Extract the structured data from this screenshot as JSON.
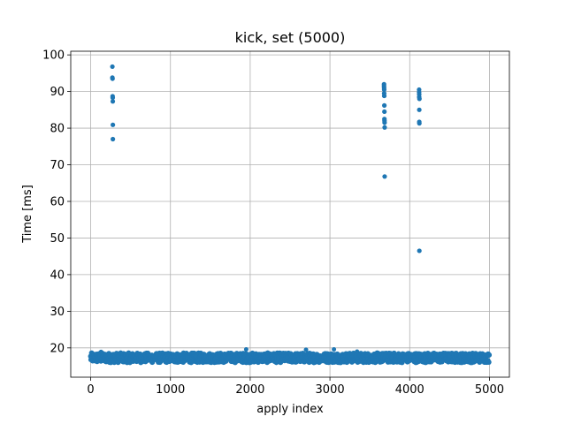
{
  "chart_data": {
    "type": "scatter",
    "title": "kick, set (5000)",
    "xlabel": "apply index",
    "ylabel": "Time [ms]",
    "xlim": [
      -250,
      5250
    ],
    "ylim": [
      12,
      101
    ],
    "xticks": [
      0,
      1000,
      2000,
      3000,
      4000,
      5000
    ],
    "yticks": [
      20,
      30,
      40,
      50,
      60,
      70,
      80,
      90,
      100
    ],
    "grid": true,
    "marker_color": "#1f77b4",
    "baseline_band": {
      "x_range": [
        0,
        5000
      ],
      "y_range": [
        16.0,
        18.6
      ],
      "count": 5000,
      "note_values": "dense cloud of points between about 16 and 19.5 ms"
    },
    "baseline_spikes": [
      {
        "x": 130,
        "y": 18.9
      },
      {
        "x": 1950,
        "y": 19.6
      },
      {
        "x": 2700,
        "y": 19.5
      },
      {
        "x": 3050,
        "y": 19.6
      },
      {
        "x": 3340,
        "y": 19.0
      }
    ],
    "series": [
      {
        "x": [
          272,
          272,
          274,
          275,
          276,
          277,
          278,
          278
        ],
        "y": [
          96.8,
          93.8,
          93.5,
          88.7,
          88.3,
          87.3,
          80.9,
          77.0
        ]
      },
      {
        "x": [
          3678,
          3678,
          3679,
          3680,
          3680,
          3681,
          3682,
          3683,
          3683,
          3684,
          3685,
          3686,
          3686
        ],
        "y": [
          92.0,
          91.5,
          91.0,
          90.5,
          89.5,
          88.8,
          86.2,
          84.5,
          82.5,
          82.0,
          81.5,
          80.2,
          66.8
        ]
      },
      {
        "x": [
          4118,
          4118,
          4119,
          4119,
          4120,
          4120,
          4121,
          4121,
          4122
        ],
        "y": [
          90.5,
          89.8,
          89.2,
          88.5,
          85.0,
          81.7,
          81.3,
          46.5,
          88.0
        ]
      }
    ]
  }
}
